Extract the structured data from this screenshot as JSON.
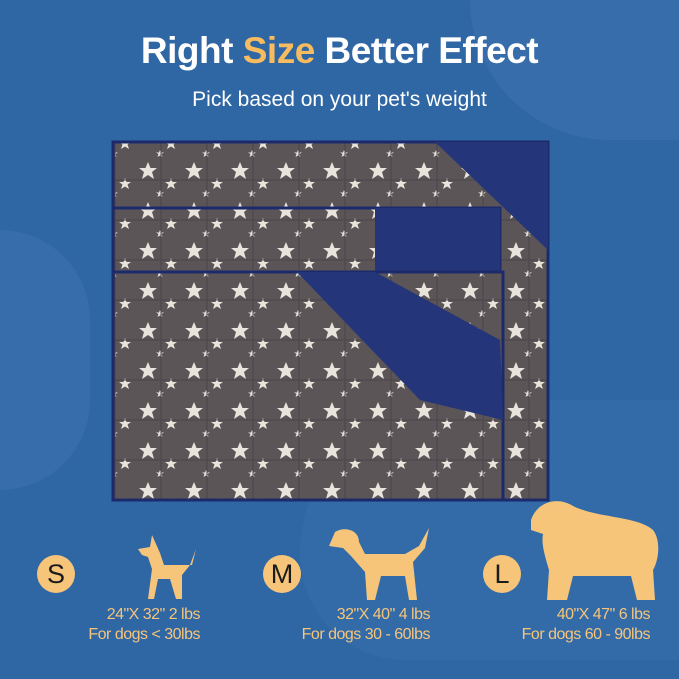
{
  "header": {
    "title_pre": "Right ",
    "title_accent": "Size",
    "title_post": " Better Effect",
    "subtitle": "Pick based on your pet's weight"
  },
  "colors": {
    "background": "#2f66a4",
    "accent": "#f6bc5f",
    "blanket": "#5b5558",
    "border": "#1c2a6b"
  },
  "sizes": [
    {
      "letter": "S",
      "dimensions": "24\"X 32\" 2 lbs",
      "weight": "For dogs < 30lbs",
      "icon": "small-dog-icon"
    },
    {
      "letter": "M",
      "dimensions": "32\"X 40\" 4 lbs",
      "weight": "For dogs 30 - 60lbs",
      "icon": "medium-dog-icon"
    },
    {
      "letter": "L",
      "dimensions": "40\"X 47\" 6 lbs",
      "weight": "For dogs 60 - 90lbs",
      "icon": "large-dog-icon"
    }
  ]
}
